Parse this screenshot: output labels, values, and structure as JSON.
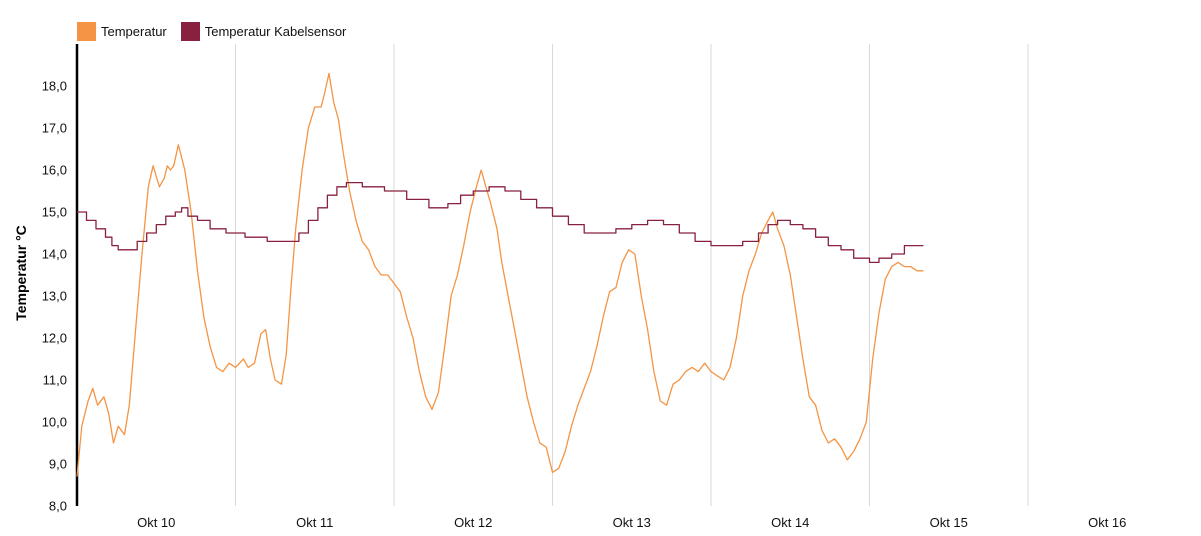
{
  "legend": [
    {
      "label": "Temperatur",
      "color": "#f49444"
    },
    {
      "label": "Temperatur Kabelsensor",
      "color": "#88213f"
    }
  ],
  "chart_data": {
    "type": "line",
    "ylabel": "Temperatur °C",
    "xlabel": "",
    "ylim": [
      8.0,
      18.9
    ],
    "xlim": [
      "Okt 9 12:00",
      "Okt 16 12:00"
    ],
    "y_ticks": [
      "8,0",
      "9,0",
      "10,0",
      "11,0",
      "12,0",
      "13,0",
      "14,0",
      "15,0",
      "16,0",
      "17,0",
      "18,0"
    ],
    "x_ticks": [
      "Okt 10",
      "Okt 11",
      "Okt 12",
      "Okt 13",
      "Okt 14",
      "Okt 15",
      "Okt 16"
    ],
    "grid": {
      "vertical": true,
      "horizontal": false
    },
    "legend_position": "top-left",
    "series": [
      {
        "name": "Temperatur",
        "color": "#f49444",
        "x_unit": "days since Okt 10 00:00",
        "points": [
          [
            -0.5,
            8.7
          ],
          [
            -0.47,
            9.9
          ],
          [
            -0.43,
            10.5
          ],
          [
            -0.4,
            10.8
          ],
          [
            -0.37,
            10.4
          ],
          [
            -0.33,
            10.6
          ],
          [
            -0.3,
            10.2
          ],
          [
            -0.27,
            9.5
          ],
          [
            -0.24,
            9.9
          ],
          [
            -0.2,
            9.7
          ],
          [
            -0.17,
            10.4
          ],
          [
            -0.13,
            12.2
          ],
          [
            -0.09,
            14.0
          ],
          [
            -0.05,
            15.6
          ],
          [
            -0.02,
            16.1
          ],
          [
            0.02,
            15.6
          ],
          [
            0.05,
            15.8
          ],
          [
            0.07,
            16.1
          ],
          [
            0.09,
            16.0
          ],
          [
            0.11,
            16.1
          ],
          [
            0.14,
            16.6
          ],
          [
            0.18,
            16.0
          ],
          [
            0.22,
            15.0
          ],
          [
            0.26,
            13.6
          ],
          [
            0.3,
            12.5
          ],
          [
            0.34,
            11.8
          ],
          [
            0.38,
            11.3
          ],
          [
            0.42,
            11.2
          ],
          [
            0.46,
            11.4
          ],
          [
            0.5,
            11.3
          ],
          [
            0.55,
            11.5
          ],
          [
            0.58,
            11.3
          ],
          [
            0.62,
            11.4
          ],
          [
            0.66,
            12.1
          ],
          [
            0.69,
            12.2
          ],
          [
            0.72,
            11.5
          ],
          [
            0.75,
            11.0
          ],
          [
            0.79,
            10.9
          ],
          [
            0.82,
            11.6
          ],
          [
            0.85,
            13.2
          ],
          [
            0.88,
            14.6
          ],
          [
            0.92,
            16.0
          ],
          [
            0.96,
            17.0
          ],
          [
            1.0,
            17.5
          ],
          [
            1.04,
            17.5
          ],
          [
            1.06,
            17.8
          ],
          [
            1.09,
            18.3
          ],
          [
            1.12,
            17.6
          ],
          [
            1.15,
            17.2
          ],
          [
            1.18,
            16.4
          ],
          [
            1.22,
            15.5
          ],
          [
            1.26,
            14.8
          ],
          [
            1.3,
            14.3
          ],
          [
            1.34,
            14.1
          ],
          [
            1.38,
            13.7
          ],
          [
            1.42,
            13.5
          ],
          [
            1.46,
            13.5
          ],
          [
            1.5,
            13.3
          ],
          [
            1.54,
            13.1
          ],
          [
            1.58,
            12.5
          ],
          [
            1.62,
            12.0
          ],
          [
            1.66,
            11.2
          ],
          [
            1.7,
            10.6
          ],
          [
            1.74,
            10.3
          ],
          [
            1.78,
            10.7
          ],
          [
            1.82,
            11.8
          ],
          [
            1.86,
            13.0
          ],
          [
            1.9,
            13.5
          ],
          [
            1.94,
            14.2
          ],
          [
            1.98,
            15.0
          ],
          [
            2.02,
            15.6
          ],
          [
            2.05,
            16.0
          ],
          [
            2.08,
            15.6
          ],
          [
            2.11,
            15.2
          ],
          [
            2.15,
            14.6
          ],
          [
            2.18,
            13.8
          ],
          [
            2.22,
            13.0
          ],
          [
            2.26,
            12.2
          ],
          [
            2.3,
            11.4
          ],
          [
            2.34,
            10.6
          ],
          [
            2.38,
            10.0
          ],
          [
            2.42,
            9.5
          ],
          [
            2.46,
            9.4
          ],
          [
            2.5,
            8.8
          ],
          [
            2.54,
            8.9
          ],
          [
            2.58,
            9.3
          ],
          [
            2.62,
            9.9
          ],
          [
            2.66,
            10.4
          ],
          [
            2.7,
            10.8
          ],
          [
            2.74,
            11.2
          ],
          [
            2.78,
            11.8
          ],
          [
            2.82,
            12.5
          ],
          [
            2.86,
            13.1
          ],
          [
            2.9,
            13.2
          ],
          [
            2.94,
            13.8
          ],
          [
            2.98,
            14.1
          ],
          [
            3.02,
            14.0
          ],
          [
            3.06,
            13.0
          ],
          [
            3.1,
            12.2
          ],
          [
            3.14,
            11.2
          ],
          [
            3.18,
            10.5
          ],
          [
            3.22,
            10.4
          ],
          [
            3.26,
            10.9
          ],
          [
            3.3,
            11.0
          ],
          [
            3.34,
            11.2
          ],
          [
            3.38,
            11.3
          ],
          [
            3.42,
            11.2
          ],
          [
            3.46,
            11.4
          ],
          [
            3.5,
            11.2
          ],
          [
            3.54,
            11.1
          ],
          [
            3.58,
            11.0
          ],
          [
            3.62,
            11.3
          ],
          [
            3.66,
            12.0
          ],
          [
            3.7,
            13.0
          ],
          [
            3.74,
            13.6
          ],
          [
            3.78,
            14.0
          ],
          [
            3.82,
            14.5
          ],
          [
            3.86,
            14.8
          ],
          [
            3.89,
            15.0
          ],
          [
            3.92,
            14.6
          ],
          [
            3.96,
            14.2
          ],
          [
            4.0,
            13.5
          ],
          [
            4.04,
            12.5
          ],
          [
            4.08,
            11.5
          ],
          [
            4.12,
            10.6
          ],
          [
            4.16,
            10.4
          ],
          [
            4.2,
            9.8
          ],
          [
            4.24,
            9.5
          ],
          [
            4.28,
            9.6
          ],
          [
            4.32,
            9.4
          ],
          [
            4.36,
            9.1
          ],
          [
            4.4,
            9.3
          ],
          [
            4.44,
            9.6
          ],
          [
            4.48,
            10.0
          ],
          [
            4.52,
            11.5
          ],
          [
            4.56,
            12.6
          ],
          [
            4.6,
            13.4
          ],
          [
            4.64,
            13.7
          ],
          [
            4.68,
            13.8
          ],
          [
            4.72,
            13.7
          ],
          [
            4.76,
            13.7
          ],
          [
            4.8,
            13.6
          ],
          [
            4.84,
            13.6
          ]
        ]
      },
      {
        "name": "Temperatur Kabelsensor",
        "color": "#88213f",
        "x_unit": "days since Okt 10 00:00",
        "points": [
          [
            -0.5,
            15.0
          ],
          [
            -0.44,
            14.8
          ],
          [
            -0.38,
            14.6
          ],
          [
            -0.32,
            14.4
          ],
          [
            -0.28,
            14.2
          ],
          [
            -0.24,
            14.1
          ],
          [
            -0.18,
            14.1
          ],
          [
            -0.12,
            14.3
          ],
          [
            -0.06,
            14.5
          ],
          [
            0.0,
            14.7
          ],
          [
            0.06,
            14.9
          ],
          [
            0.12,
            15.0
          ],
          [
            0.16,
            15.1
          ],
          [
            0.2,
            14.9
          ],
          [
            0.26,
            14.8
          ],
          [
            0.34,
            14.6
          ],
          [
            0.44,
            14.5
          ],
          [
            0.56,
            14.4
          ],
          [
            0.7,
            14.3
          ],
          [
            0.84,
            14.3
          ],
          [
            0.9,
            14.5
          ],
          [
            0.96,
            14.8
          ],
          [
            1.02,
            15.1
          ],
          [
            1.08,
            15.4
          ],
          [
            1.14,
            15.6
          ],
          [
            1.2,
            15.7
          ],
          [
            1.3,
            15.6
          ],
          [
            1.44,
            15.5
          ],
          [
            1.58,
            15.3
          ],
          [
            1.72,
            15.1
          ],
          [
            1.84,
            15.2
          ],
          [
            1.92,
            15.4
          ],
          [
            2.0,
            15.5
          ],
          [
            2.1,
            15.6
          ],
          [
            2.2,
            15.5
          ],
          [
            2.3,
            15.3
          ],
          [
            2.4,
            15.1
          ],
          [
            2.5,
            14.9
          ],
          [
            2.6,
            14.7
          ],
          [
            2.7,
            14.5
          ],
          [
            2.8,
            14.5
          ],
          [
            2.9,
            14.6
          ],
          [
            3.0,
            14.7
          ],
          [
            3.1,
            14.8
          ],
          [
            3.2,
            14.7
          ],
          [
            3.3,
            14.5
          ],
          [
            3.4,
            14.3
          ],
          [
            3.5,
            14.2
          ],
          [
            3.6,
            14.2
          ],
          [
            3.7,
            14.3
          ],
          [
            3.8,
            14.5
          ],
          [
            3.86,
            14.7
          ],
          [
            3.92,
            14.8
          ],
          [
            4.0,
            14.7
          ],
          [
            4.08,
            14.6
          ],
          [
            4.16,
            14.4
          ],
          [
            4.24,
            14.2
          ],
          [
            4.32,
            14.1
          ],
          [
            4.4,
            13.9
          ],
          [
            4.5,
            13.8
          ],
          [
            4.56,
            13.9
          ],
          [
            4.64,
            14.0
          ],
          [
            4.72,
            14.2
          ],
          [
            4.84,
            14.2
          ]
        ]
      }
    ]
  }
}
